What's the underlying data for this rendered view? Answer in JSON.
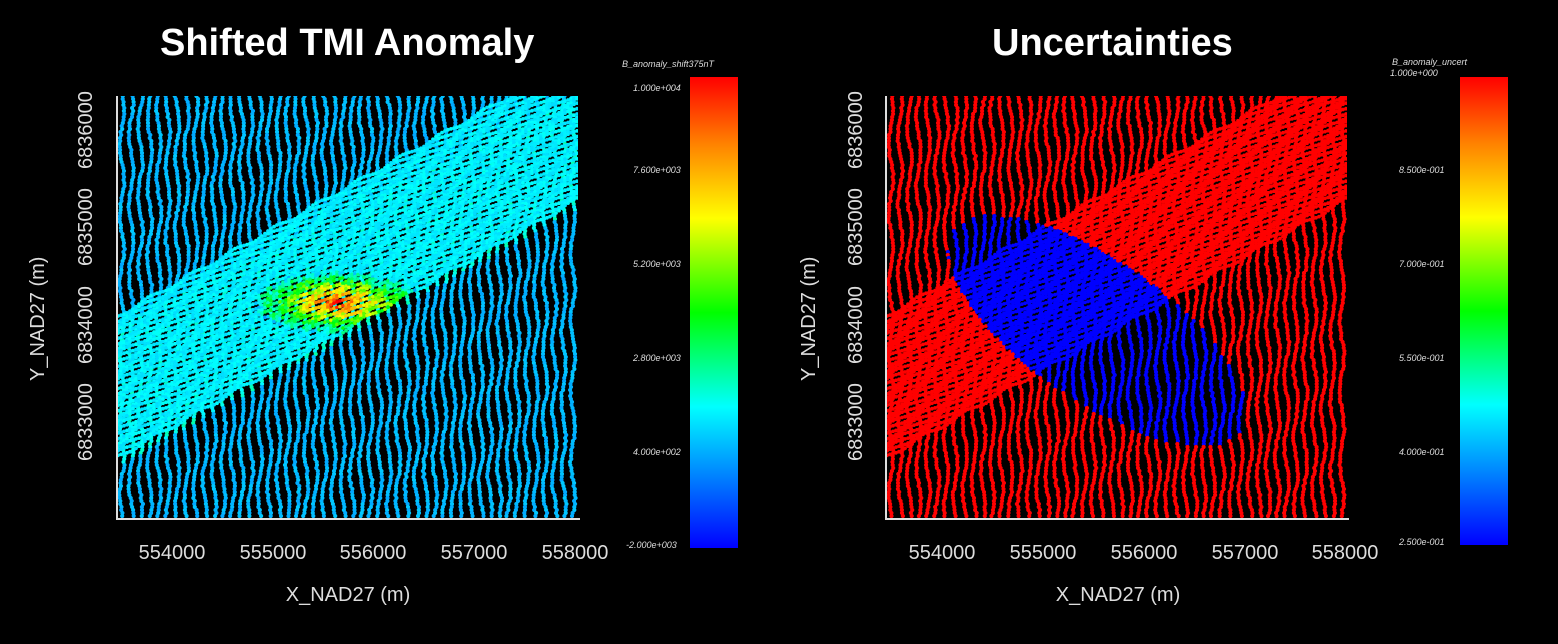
{
  "chart_data": [
    {
      "type": "heatmap",
      "title": "Shifted TMI Anomaly",
      "xlabel": "X_NAD27 (m)",
      "ylabel": "Y_NAD27 (m)",
      "xlim": [
        553450,
        558000
      ],
      "ylim": [
        6832250,
        6836350
      ],
      "x_ticks": [
        "554000",
        "555000",
        "556000",
        "557000",
        "558000"
      ],
      "y_ticks": [
        "6833000",
        "6834000",
        "6835000",
        "6836000"
      ],
      "colorbar": {
        "title": "B_anomaly_shift375nT",
        "ticks": [
          "1.000e+004",
          "7.600e+003",
          "5.200e+003",
          "2.800e+003",
          "4.000e+002",
          "-2.000e+003"
        ],
        "range": [
          -2000,
          10000
        ],
        "colormap": "rainbow"
      },
      "description_values": {
        "background_value": 600,
        "strip_value": 1600,
        "peak_value": 9500
      }
    },
    {
      "type": "heatmap",
      "title": "Uncertainties",
      "xlabel": "X_NAD27 (m)",
      "ylabel": "Y_NAD27 (m)",
      "xlim": [
        553450,
        558000
      ],
      "ylim": [
        6832250,
        6836350
      ],
      "x_ticks": [
        "554000",
        "555000",
        "556000",
        "557000",
        "558000"
      ],
      "y_ticks": [
        "6833000",
        "6834000",
        "6835000",
        "6836000"
      ],
      "colorbar": {
        "title": "B_anomaly_uncert",
        "ticks": [
          "1.000e+000",
          "8.500e-001",
          "7.000e-001",
          "5.500e-001",
          "4.000e-001",
          "2.500e-001"
        ],
        "range": [
          0.25,
          1.0
        ],
        "colormap": "rainbow"
      },
      "description_values": {
        "outside_value": 1.0,
        "inside_value": 0.25
      }
    }
  ],
  "colors": {
    "background": "#000000",
    "axis": "#dddddd",
    "text": "#ffffff"
  }
}
